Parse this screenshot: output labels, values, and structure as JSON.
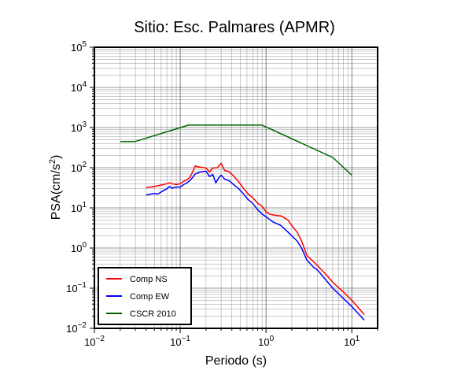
{
  "chart_data": {
    "type": "line",
    "title": "Sitio: Esc. Palmares (APMR)",
    "xlabel": "Periodo (s)",
    "ylabel_prefix": "PSA(cm/s",
    "ylabel_sup": "2",
    "ylabel_suffix": ")",
    "x_scale": "log",
    "y_scale": "log",
    "xlim": [
      0.01,
      20
    ],
    "ylim": [
      0.01,
      100000
    ],
    "grid": true,
    "legend_position": "bottom-left",
    "x_ticks": [
      {
        "value": 0.01,
        "base": "10",
        "exp": "−2"
      },
      {
        "value": 0.1,
        "base": "10",
        "exp": "−1"
      },
      {
        "value": 1,
        "base": "10",
        "exp": "0"
      },
      {
        "value": 10,
        "base": "10",
        "exp": "1"
      }
    ],
    "y_ticks": [
      {
        "value": 0.01,
        "base": "10",
        "exp": "−2"
      },
      {
        "value": 0.1,
        "base": "10",
        "exp": "−1"
      },
      {
        "value": 1,
        "base": "10",
        "exp": "0"
      },
      {
        "value": 10,
        "base": "10",
        "exp": "1"
      },
      {
        "value": 100,
        "base": "10",
        "exp": "2"
      },
      {
        "value": 1000,
        "base": "10",
        "exp": "3"
      },
      {
        "value": 10000,
        "base": "10",
        "exp": "4"
      },
      {
        "value": 100000,
        "base": "10",
        "exp": "5"
      }
    ],
    "series": [
      {
        "name": "Comp NS",
        "color": "#ff0000",
        "points": [
          [
            0.04,
            32
          ],
          [
            0.05,
            34
          ],
          [
            0.06,
            37
          ],
          [
            0.07,
            40
          ],
          [
            0.075,
            42
          ],
          [
            0.08,
            40
          ],
          [
            0.09,
            38
          ],
          [
            0.1,
            40
          ],
          [
            0.11,
            46
          ],
          [
            0.12,
            50
          ],
          [
            0.13,
            58
          ],
          [
            0.14,
            80
          ],
          [
            0.15,
            112
          ],
          [
            0.16,
            105
          ],
          [
            0.18,
            102
          ],
          [
            0.2,
            98
          ],
          [
            0.22,
            78
          ],
          [
            0.24,
            98
          ],
          [
            0.27,
            100
          ],
          [
            0.3,
            128
          ],
          [
            0.33,
            85
          ],
          [
            0.37,
            80
          ],
          [
            0.42,
            62
          ],
          [
            0.48,
            45
          ],
          [
            0.55,
            30
          ],
          [
            0.62,
            22
          ],
          [
            0.7,
            18
          ],
          [
            0.8,
            13
          ],
          [
            0.9,
            11
          ],
          [
            1.0,
            8
          ],
          [
            1.1,
            7
          ],
          [
            1.3,
            6.5
          ],
          [
            1.5,
            6.3
          ],
          [
            1.8,
            5
          ],
          [
            2.0,
            3.6
          ],
          [
            2.3,
            2.5
          ],
          [
            2.6,
            1.5
          ],
          [
            3.0,
            0.65
          ],
          [
            3.5,
            0.48
          ],
          [
            4.0,
            0.36
          ],
          [
            5.0,
            0.22
          ],
          [
            6.0,
            0.14
          ],
          [
            8.0,
            0.08
          ],
          [
            10.0,
            0.05
          ],
          [
            14.0,
            0.022
          ]
        ]
      },
      {
        "name": "Comp EW",
        "color": "#0000ff",
        "points": [
          [
            0.04,
            21
          ],
          [
            0.05,
            23
          ],
          [
            0.055,
            22
          ],
          [
            0.06,
            25
          ],
          [
            0.07,
            30
          ],
          [
            0.075,
            34
          ],
          [
            0.08,
            31
          ],
          [
            0.09,
            33
          ],
          [
            0.1,
            33
          ],
          [
            0.11,
            38
          ],
          [
            0.12,
            42
          ],
          [
            0.13,
            48
          ],
          [
            0.14,
            58
          ],
          [
            0.15,
            70
          ],
          [
            0.17,
            78
          ],
          [
            0.2,
            82
          ],
          [
            0.22,
            60
          ],
          [
            0.24,
            68
          ],
          [
            0.26,
            42
          ],
          [
            0.28,
            55
          ],
          [
            0.3,
            65
          ],
          [
            0.33,
            52
          ],
          [
            0.37,
            48
          ],
          [
            0.42,
            38
          ],
          [
            0.48,
            30
          ],
          [
            0.55,
            22
          ],
          [
            0.62,
            16
          ],
          [
            0.7,
            13
          ],
          [
            0.8,
            9
          ],
          [
            0.9,
            7
          ],
          [
            1.0,
            6
          ],
          [
            1.2,
            4.5
          ],
          [
            1.5,
            3.6
          ],
          [
            1.8,
            2.5
          ],
          [
            2.0,
            2.0
          ],
          [
            2.3,
            1.5
          ],
          [
            2.6,
            1.0
          ],
          [
            3.0,
            0.5
          ],
          [
            3.5,
            0.35
          ],
          [
            4.0,
            0.28
          ],
          [
            5.0,
            0.16
          ],
          [
            6.0,
            0.1
          ],
          [
            8.0,
            0.055
          ],
          [
            10.0,
            0.035
          ],
          [
            14.0,
            0.016
          ]
        ]
      },
      {
        "name": "CSCR 2010",
        "color": "#006400",
        "points": [
          [
            0.02,
            450
          ],
          [
            0.03,
            450
          ],
          [
            0.125,
            1150
          ],
          [
            0.9,
            1150
          ],
          [
            6.0,
            180
          ],
          [
            10.0,
            65
          ]
        ]
      }
    ]
  }
}
